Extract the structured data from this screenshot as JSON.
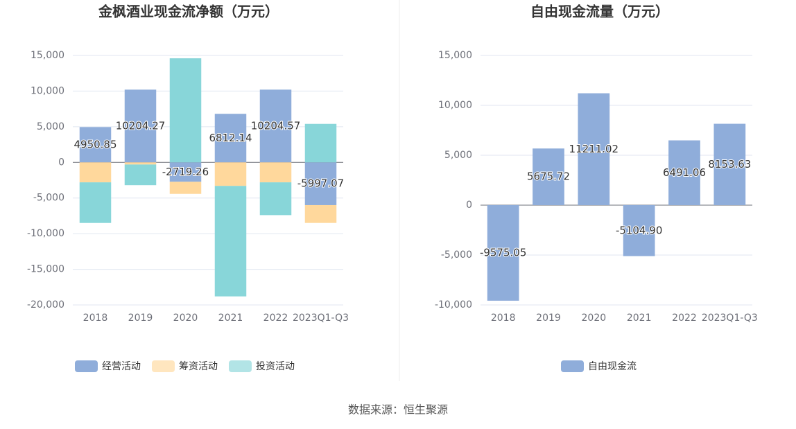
{
  "chart_data": [
    {
      "type": "stacked_bar",
      "title": "金枫酒业现金流净额（万元）",
      "categories": [
        "2018",
        "2019",
        "2020",
        "2021",
        "2022",
        "2023Q1-Q3"
      ],
      "series": [
        {
          "name": "经营活动",
          "color": "#8fadda",
          "labels": true,
          "values": [
            4950.85,
            10204.27,
            -2719.26,
            6812.14,
            10204.57,
            -5997.07
          ]
        },
        {
          "name": "筹资活动",
          "color": "#ffd89c",
          "values": [
            -2800,
            -300,
            -1700,
            -3300,
            -2800,
            -2500
          ]
        },
        {
          "name": "投资活动",
          "color": "#88d6d9",
          "values": [
            -5700,
            -2900,
            14600,
            -15500,
            -4600,
            5400
          ]
        }
      ],
      "ylim": [
        -20000,
        15000
      ],
      "yticks": [
        {
          "value": -20000,
          "label": "-20,000"
        },
        {
          "value": -15000,
          "label": "-15,000"
        },
        {
          "value": -10000,
          "label": "-10,000"
        },
        {
          "value": -5000,
          "label": "-5,000"
        },
        0,
        {
          "value": 5000,
          "label": "5,000"
        },
        {
          "value": 10000,
          "label": "10,000"
        },
        {
          "value": 15000,
          "label": "15,000"
        }
      ],
      "grid": true
    },
    {
      "type": "bar",
      "title": "自由现金流量（万元）",
      "categories": [
        "2018",
        "2019",
        "2020",
        "2021",
        "2022",
        "2023Q1-Q3"
      ],
      "series": [
        {
          "name": "自由现金流",
          "color": "#8fadda",
          "labels": true,
          "values": [
            -9575.05,
            5675.72,
            11211.02,
            -5104.9,
            6491.06,
            8153.63
          ],
          "value_labels": [
            "-9575.05",
            "5675.72",
            "11211.02",
            "-5104.90",
            "6491.06",
            "8153.63"
          ]
        }
      ],
      "ylim": [
        -10000,
        15000
      ],
      "yticks": [
        {
          "value": -10000,
          "label": "-10,000"
        },
        {
          "value": -5000,
          "label": "-5,000"
        },
        0,
        {
          "value": 5000,
          "label": "5,000"
        },
        {
          "value": 10000,
          "label": "10,000"
        },
        {
          "value": 15000,
          "label": "15,000"
        }
      ],
      "grid": true
    }
  ],
  "source": "数据来源：恒生聚源"
}
